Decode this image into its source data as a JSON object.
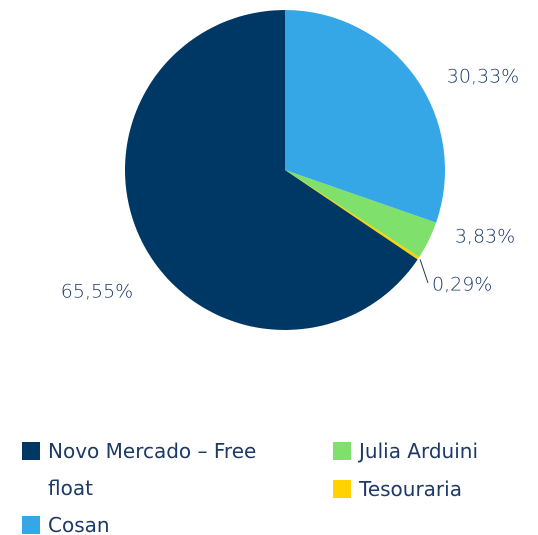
{
  "chart_data": {
    "type": "pie",
    "categories": [
      "Cosan",
      "Julia Arduini",
      "Tesouraria",
      "Novo Mercado – Free float"
    ],
    "values": [
      30.33,
      3.83,
      0.29,
      65.55
    ],
    "value_labels": [
      "30,33%",
      "3,83%",
      "0,29%",
      "65,55%"
    ],
    "colors": [
      "#35a7e6",
      "#7fe06b",
      "#ffd200",
      "#003865"
    ],
    "legend": "bottom"
  }
}
